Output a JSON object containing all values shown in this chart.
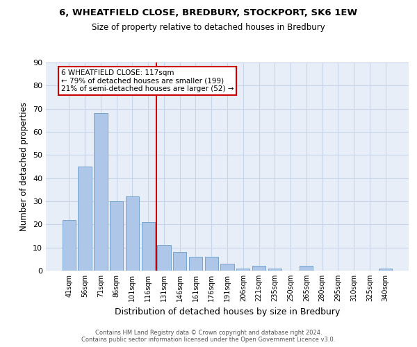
{
  "title1": "6, WHEATFIELD CLOSE, BREDBURY, STOCKPORT, SK6 1EW",
  "title2": "Size of property relative to detached houses in Bredbury",
  "xlabel": "Distribution of detached houses by size in Bredbury",
  "ylabel": "Number of detached properties",
  "categories": [
    "41sqm",
    "56sqm",
    "71sqm",
    "86sqm",
    "101sqm",
    "116sqm",
    "131sqm",
    "146sqm",
    "161sqm",
    "176sqm",
    "191sqm",
    "206sqm",
    "221sqm",
    "235sqm",
    "250sqm",
    "265sqm",
    "280sqm",
    "295sqm",
    "310sqm",
    "325sqm",
    "340sqm"
  ],
  "values": [
    22,
    45,
    68,
    30,
    32,
    21,
    11,
    8,
    6,
    6,
    3,
    1,
    2,
    1,
    0,
    2,
    0,
    0,
    0,
    0,
    1
  ],
  "bar_color": "#aec6e8",
  "bar_edge_color": "#6a9cc8",
  "vline_x": 5.5,
  "vline_color": "#cc0000",
  "annotation_lines": [
    "6 WHEATFIELD CLOSE: 117sqm",
    "← 79% of detached houses are smaller (199)",
    "21% of semi-detached houses are larger (52) →"
  ],
  "annotation_box_color": "#cc0000",
  "ylim": [
    0,
    90
  ],
  "yticks": [
    0,
    10,
    20,
    30,
    40,
    50,
    60,
    70,
    80,
    90
  ],
  "grid_color": "#c8d4e8",
  "bg_color": "#e8eef8",
  "footer1": "Contains HM Land Registry data © Crown copyright and database right 2024.",
  "footer2": "Contains public sector information licensed under the Open Government Licence v3.0."
}
